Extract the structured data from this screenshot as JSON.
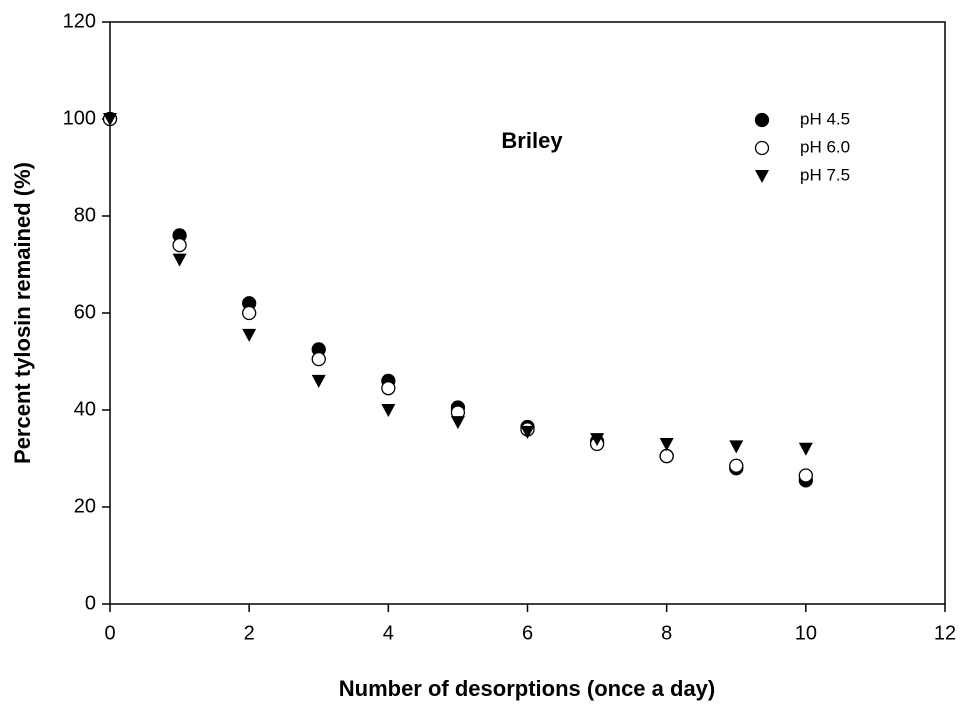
{
  "chart_data": {
    "type": "scatter",
    "xlabel": "Number of desorptions (once a day)",
    "ylabel": "Percent tylosin remained (%)",
    "annotation": "Briley",
    "x": [
      0,
      1,
      2,
      3,
      4,
      5,
      6,
      7,
      8,
      9,
      10
    ],
    "series": [
      {
        "name": "pH 4.5",
        "color": "#000000",
        "marker": "circle-filled",
        "values": [
          100,
          76,
          62,
          52.5,
          46,
          40.5,
          36.5,
          33.5,
          30.5,
          28,
          25.5
        ]
      },
      {
        "name": "pH 6.0",
        "color": "#000000",
        "marker": "circle-open",
        "values": [
          100,
          74,
          60,
          50.5,
          44.5,
          39.5,
          36,
          33,
          30.5,
          28.5,
          26.5
        ]
      },
      {
        "name": "pH 7.5",
        "color": "#000000",
        "marker": "triangle-down",
        "values": [
          100,
          71,
          55.5,
          46,
          40,
          37.5,
          35.5,
          34,
          33,
          32.5,
          32
        ]
      }
    ],
    "xlim": [
      0,
      12
    ],
    "xticks": [
      0,
      2,
      4,
      6,
      8,
      10,
      12
    ],
    "ylim": [
      0,
      120
    ],
    "yticks": [
      0,
      20,
      40,
      60,
      80,
      100,
      120
    ],
    "grid": false,
    "legend": "upper right"
  }
}
